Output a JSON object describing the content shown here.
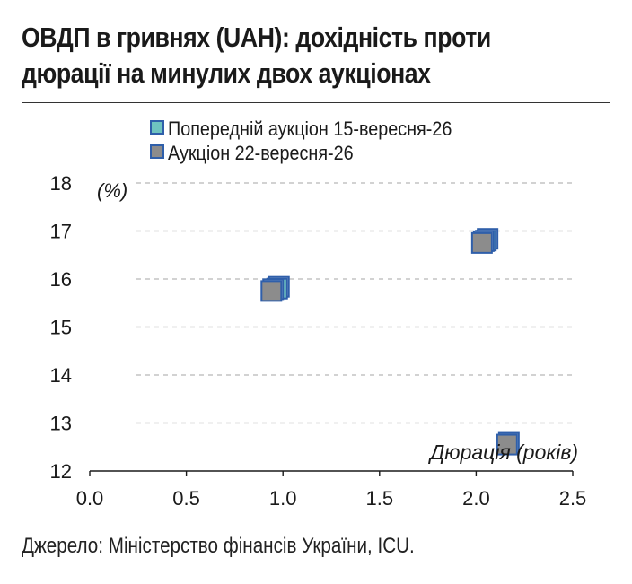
{
  "title_line1": "ОВДП в гривнях (UAH): дохідність проти",
  "title_line2": "дюрації на минулих двох аукціонах",
  "source": "Джерело: Міністерство фінансів України, ICU.",
  "chart_data": {
    "type": "scatter",
    "ylabel": "(%)",
    "xlabel": "Дюрація (років)",
    "xlim": [
      0,
      2.5
    ],
    "ylim": [
      12,
      18
    ],
    "x_ticks": [
      "0.0",
      "0.5",
      "1.0",
      "1.5",
      "2.0",
      "2.5"
    ],
    "y_ticks": [
      "12",
      "13",
      "14",
      "15",
      "16",
      "17",
      "18"
    ],
    "grid": true,
    "legend_position": "top",
    "series": [
      {
        "name": "Попередній аукціон 15-вересня-26",
        "color": "#6fc3c0",
        "edge_color": "#2f5faa",
        "points": [
          {
            "x": 0.97,
            "y": 15.8
          },
          {
            "x": 2.05,
            "y": 16.8
          }
        ]
      },
      {
        "name": "Аукціон 22-вересня-26",
        "color": "#8c8c8c",
        "edge_color": "#2f5faa",
        "points": [
          {
            "x": 0.94,
            "y": 15.75
          },
          {
            "x": 2.03,
            "y": 16.75
          },
          {
            "x": 2.16,
            "y": 12.55
          }
        ]
      }
    ]
  }
}
